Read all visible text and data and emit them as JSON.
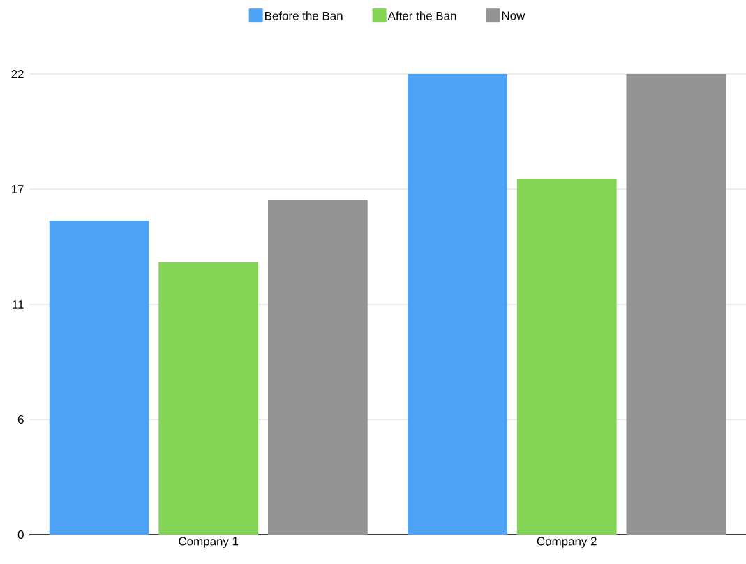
{
  "chart_data": {
    "type": "bar",
    "categories": [
      "Company 1",
      "Company 2"
    ],
    "series": [
      {
        "name": "Before the Ban",
        "color": "#4fa3f7",
        "values": [
          15,
          22
        ]
      },
      {
        "name": "After the Ban",
        "color": "#83d354",
        "values": [
          13,
          17
        ]
      },
      {
        "name": "Now",
        "color": "#949494",
        "values": [
          16,
          22
        ]
      }
    ],
    "ylim": [
      0,
      22
    ],
    "yticks": [
      0,
      {
        "value": 5.5,
        "label": "6"
      },
      11,
      {
        "value": 16.5,
        "label": "17"
      },
      22
    ],
    "grid": "y",
    "legend": "top"
  }
}
